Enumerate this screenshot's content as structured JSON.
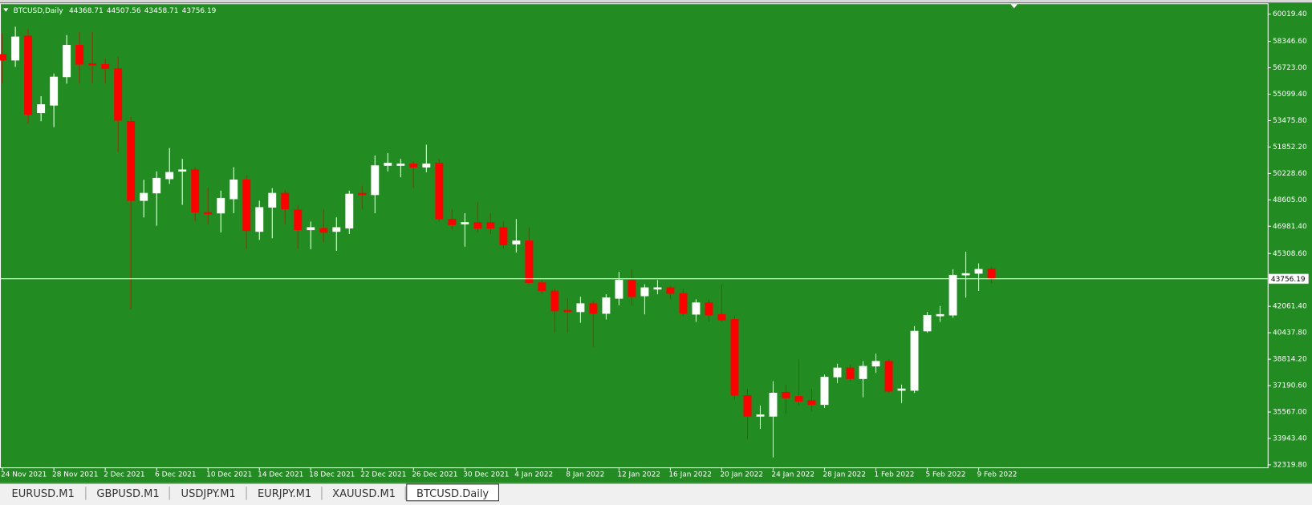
{
  "chart_data": {
    "type": "candlestick",
    "title": "BTCUSD,Daily",
    "background": "#228b22",
    "up_color": "#ffffff",
    "down_color": "#ff0000",
    "categories": [
      "24 Nov 2021",
      null,
      null,
      null,
      "28 Nov 2021",
      null,
      null,
      null,
      "2 Dec 2021",
      null,
      null,
      null,
      "6 Dec 2021",
      null,
      null,
      null,
      "10 Dec 2021",
      null,
      null,
      null,
      "14 Dec 2021",
      null,
      null,
      null,
      "18 Dec 2021",
      null,
      null,
      null,
      "22 Dec 2021",
      null,
      null,
      null,
      "26 Dec 2021",
      null,
      null,
      null,
      "30 Dec 2021",
      null,
      null,
      null,
      "4 Jan 2022",
      null,
      null,
      null,
      "8 Jan 2022",
      null,
      null,
      null,
      "12 Jan 2022",
      null,
      null,
      null,
      "16 Jan 2022",
      null,
      null,
      null,
      "20 Jan 2022",
      null,
      null,
      null,
      "24 Jan 2022",
      null,
      null,
      null,
      "28 Jan 2022",
      null,
      null,
      null,
      "1 Feb 2022",
      null,
      null,
      null,
      "5 Feb 2022",
      null,
      null,
      null,
      "9 Feb 2022",
      null
    ],
    "open": [
      57547,
      57187,
      58678,
      53951,
      54413,
      56160,
      58112,
      56982,
      56930,
      56674,
      53437,
      48556,
      49018,
      49892,
      50354,
      50457,
      47837,
      47785,
      48659,
      49840,
      46655,
      48145,
      49018,
      47991,
      46758,
      46860,
      46655,
      46860,
      49018,
      48915,
      50714,
      50714,
      50817,
      50611,
      50868,
      47425,
      47117,
      47220,
      47220,
      46911,
      45884,
      46090,
      43520,
      43006,
      41826,
      41723,
      42236,
      41620,
      42544,
      43674,
      42698,
      43109,
      43212,
      42852,
      41569,
      42287,
      41569,
      41260,
      36584,
      35299,
      35299,
      36790,
      36533,
      36276,
      36018,
      37714,
      38280,
      37611,
      38382,
      38690,
      36892,
      36892,
      40541,
      41466,
      41517,
      43982,
      44085,
      44368.71
    ],
    "high": [
      58832,
      59243,
      59089,
      54978,
      56366,
      58729,
      58935,
      58935,
      57290,
      57393,
      53694,
      49840,
      50354,
      51792,
      51125,
      50611,
      49327,
      49172,
      50611,
      50097,
      48556,
      49327,
      49224,
      48299,
      47271,
      48042,
      47528,
      49172,
      49481,
      51330,
      51484,
      51125,
      50971,
      51998,
      51125,
      48042,
      47785,
      48453,
      47785,
      47271,
      47425,
      46911,
      43674,
      43160,
      42544,
      42647,
      42390,
      42801,
      44188,
      44342,
      43417,
      43674,
      43315,
      43160,
      42493,
      42493,
      43417,
      41466,
      36995,
      35967,
      37457,
      37252,
      38793,
      36995,
      37868,
      38536,
      38485,
      38690,
      39153,
      38793,
      37252,
      40849,
      41723,
      42082,
      44342,
      45422,
      44702,
      44507.56
    ],
    "low": [
      55749,
      56777,
      53283,
      53437,
      53077,
      55749,
      55749,
      55749,
      55749,
      51536,
      41877,
      47528,
      47014,
      49584,
      48299,
      47271,
      47117,
      46604,
      47785,
      45576,
      46141,
      46244,
      47117,
      45576,
      45576,
      45987,
      45473,
      46501,
      48042,
      47785,
      50354,
      49994,
      49327,
      50303,
      47271,
      46758,
      45730,
      46604,
      46501,
      45627,
      45370,
      43417,
      42801,
      40438,
      40438,
      41054,
      39564,
      41260,
      42133,
      42133,
      41569,
      42801,
      42493,
      41466,
      41106,
      41106,
      41106,
      36327,
      33916,
      34528,
      32783,
      35453,
      35967,
      35607,
      35813,
      37354,
      37457,
      36481,
      37971,
      36738,
      36121,
      36738,
      40438,
      41106,
      41363,
      42596,
      43006,
      43458.71
    ],
    "close": [
      57187,
      58626,
      53848,
      54465,
      56160,
      58112,
      56930,
      56879,
      56674,
      53488,
      48556,
      49018,
      49943,
      50303,
      50457,
      47837,
      47734,
      48710,
      49840,
      46706,
      48145,
      49018,
      48042,
      46758,
      46911,
      46604,
      46911,
      48967,
      48915,
      50714,
      50868,
      50817,
      50611,
      50817,
      47425,
      47066,
      47220,
      46860,
      46860,
      45833,
      46090,
      43520,
      43006,
      41774,
      41723,
      42236,
      41620,
      42596,
      43674,
      42647,
      43212,
      43212,
      42852,
      41620,
      42287,
      41517,
      41209,
      36584,
      35299,
      35402,
      36738,
      36430,
      36224,
      36018,
      37714,
      38280,
      37611,
      38382,
      38690,
      36841,
      36995,
      40541,
      41517,
      41569,
      43982,
      44085,
      44342,
      43756.19
    ],
    "ylim": [
      32165.7,
      60630.2
    ],
    "yticks": [
      {
        "value": 60019.4,
        "label": "60019.40"
      },
      {
        "value": 58346.6,
        "label": "58346.60"
      },
      {
        "value": 56723,
        "label": "56723.00"
      },
      {
        "value": 55099.4,
        "label": "55099.40"
      },
      {
        "value": 53475.8,
        "label": "53475.80"
      },
      {
        "value": 51852.2,
        "label": "51852.20"
      },
      {
        "value": 50228.6,
        "label": "50228.60"
      },
      {
        "value": 48605,
        "label": "48605.00"
      },
      {
        "value": 46981.4,
        "label": "46981.40"
      },
      {
        "value": 45308.6,
        "label": "45308.60"
      },
      {
        "value": 42061.4,
        "label": "42061.40"
      },
      {
        "value": 40437.8,
        "label": "40437.80"
      },
      {
        "value": 38814.2,
        "label": "38814.20"
      },
      {
        "value": 37190.6,
        "label": "37190.60"
      },
      {
        "value": 35567,
        "label": "35567.00"
      },
      {
        "value": 33943.4,
        "label": "33943.40"
      },
      {
        "value": 32319.8,
        "label": "32319.80"
      }
    ]
  },
  "tabs": [
    {
      "label": "EURUSD.M1",
      "active": false
    },
    {
      "label": "GBPUSD.M1",
      "active": false
    },
    {
      "label": "USDJPY.M1",
      "active": false
    },
    {
      "label": "EURJPY.M1",
      "active": false
    },
    {
      "label": "XAUUSD.M1",
      "active": false
    },
    {
      "label": "BTCUSD.Daily",
      "active": true
    }
  ]
}
